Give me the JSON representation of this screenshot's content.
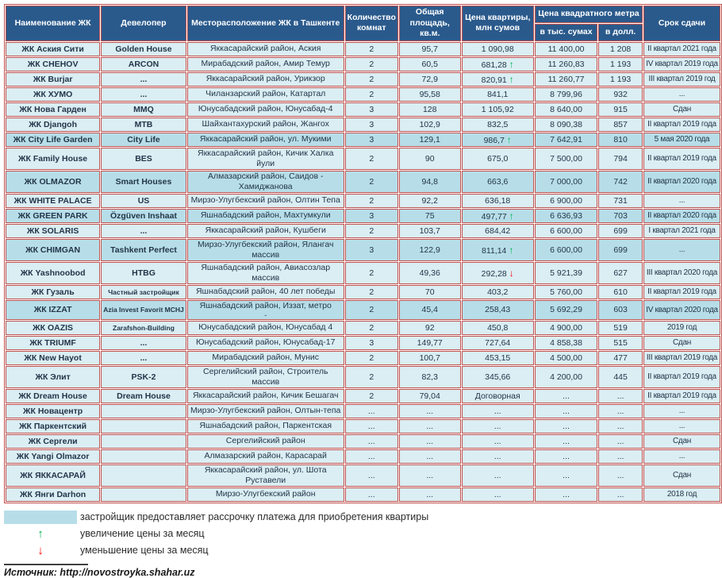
{
  "colors": {
    "header_bg": "#2A5A8C",
    "border": "#C0504D",
    "row_bg": "#DAEEF3",
    "highlight_bg": "#B7DEE8",
    "arrow_up": "#00B050",
    "arrow_down": "#FF0000"
  },
  "table": {
    "headers": {
      "name": "Наименование ЖК",
      "developer": "Девелопер",
      "location": "Месторасположение ЖК в Ташкенте",
      "rooms": "Количество комнат",
      "area": "Общая площадь, кв.м.",
      "price": "Цена квартиры, млн сумов",
      "sqm_group": "Цена квадратного метра",
      "sqm_sum": "в тыс. сумах",
      "sqm_usd": "в долл.",
      "deadline": "Срок сдачи"
    },
    "rows": [
      {
        "name": "ЖК Аския Сити",
        "dev": "Golden House",
        "loc": "Яккасарайский район, Аския",
        "rooms": "2",
        "area": "95,7",
        "price": "1 090,98",
        "arrow": "",
        "sqm": "11 400,00",
        "usd": "1 208",
        "due": "II квартал 2021 года",
        "hl": false
      },
      {
        "name": "ЖК CHEHOV",
        "dev": "ARCON",
        "loc": "Мирабадский район, Амир Темур",
        "rooms": "2",
        "area": "60,5",
        "price": "681,28",
        "arrow": "up",
        "sqm": "11 260,83",
        "usd": "1 193",
        "due": "IV квартал 2019 года",
        "hl": false
      },
      {
        "name": "ЖК Burjar",
        "dev": "...",
        "loc": "Яккасарайский район, Урикзор",
        "rooms": "2",
        "area": "72,9",
        "price": "820,91",
        "arrow": "up",
        "sqm": "11 260,77",
        "usd": "1 193",
        "due": "III квартал 2019 год",
        "hl": false
      },
      {
        "name": "ЖК ХУМО",
        "dev": "...",
        "loc": "Чиланзарский район, Катартал",
        "rooms": "2",
        "area": "95,58",
        "price": "841,1",
        "arrow": "",
        "sqm": "8 799,96",
        "usd": "932",
        "due": "...",
        "hl": false
      },
      {
        "name": "ЖК Нова Гарден",
        "dev": "MMQ",
        "loc": "Юнусабадский район, Юнусабад-4",
        "rooms": "3",
        "area": "128",
        "price": "1 105,92",
        "arrow": "",
        "sqm": "8 640,00",
        "usd": "915",
        "due": "Сдан",
        "hl": false
      },
      {
        "name": "ЖК Djangoh",
        "dev": "MTB",
        "loc": "Шайхантахурский район, Жангох",
        "rooms": "3",
        "area": "102,9",
        "price": "832,5",
        "arrow": "",
        "sqm": "8 090,38",
        "usd": "857",
        "due": "II квартал 2019 года",
        "hl": false
      },
      {
        "name": "ЖК City Life Garden",
        "dev": "City Life",
        "loc": "Яккасарайский район, ул. Мукими",
        "rooms": "3",
        "area": "129,1",
        "price": "986,7",
        "arrow": "up",
        "sqm": "7 642,91",
        "usd": "810",
        "due": "5 мая 2020 года",
        "hl": true
      },
      {
        "name": "ЖК Family House",
        "dev": "BES",
        "loc": "Яккасарайский район, Кичик Халка йули",
        "rooms": "2",
        "area": "90",
        "price": "675,0",
        "arrow": "",
        "sqm": "7 500,00",
        "usd": "794",
        "due": "II квартал 2019 года",
        "hl": false
      },
      {
        "name": "ЖК OLMAZOR",
        "dev": "Smart Houses",
        "loc": "Алмазарский район, Саидов - Хамиджанова",
        "rooms": "2",
        "area": "94,8",
        "price": "663,6",
        "arrow": "",
        "sqm": "7 000,00",
        "usd": "742",
        "due": "II квартал 2020 года",
        "hl": true
      },
      {
        "name": "ЖК WHITE PALACE",
        "dev": "US",
        "loc": "Мирзо-Улугбекский район, Олтин Тепа",
        "rooms": "2",
        "area": "92,2",
        "price": "636,18",
        "arrow": "",
        "sqm": "6 900,00",
        "usd": "731",
        "due": "...",
        "hl": false
      },
      {
        "name": "ЖК GREEN PARK",
        "dev": "Özgüven Inshaat",
        "loc": "Яшнабадский район, Махтумкули",
        "rooms": "3",
        "area": "75",
        "price": "497,77",
        "arrow": "up",
        "sqm": "6 636,93",
        "usd": "703",
        "due": "II квартал 2020 года",
        "hl": true
      },
      {
        "name": "ЖК SOLARIS",
        "dev": "...",
        "loc": "Яккасарайский район, Кушбеги",
        "rooms": "2",
        "area": "103,7",
        "price": "684,42",
        "arrow": "",
        "sqm": "6 600,00",
        "usd": "699",
        "due": "I квартал 2021 года",
        "hl": false
      },
      {
        "name": "ЖК CHIMGAN",
        "dev": "Tashkent Perfect",
        "loc": "Мирзо-Улугбекский район, Ялангач массив",
        "rooms": "3",
        "area": "122,9",
        "price": "811,14",
        "arrow": "up",
        "sqm": "6 600,00",
        "usd": "699",
        "due": "...",
        "hl": true
      },
      {
        "name": "ЖК Yashnoobod",
        "dev": "HTBG",
        "loc": "Яшнабадский район, Авиасозлар массив",
        "rooms": "2",
        "area": "49,36",
        "price": "292,28",
        "arrow": "down",
        "sqm": "5 921,39",
        "usd": "627",
        "due": "III квартал 2020 года",
        "hl": false
      },
      {
        "name": "ЖК Гузаль",
        "dev": "Частный застройщик",
        "loc": "Яшнабадский район, 40 лет победы",
        "rooms": "2",
        "area": "70",
        "price": "403,2",
        "arrow": "",
        "sqm": "5 760,00",
        "usd": "610",
        "due": "II квартал 2019 года",
        "hl": false
      },
      {
        "name": "ЖК IZZAT",
        "dev": "Azia Invest Favorit MCHJ",
        "loc": "Яшнабадский район, Иззат, метро",
        "loc2": "-",
        "rooms": "2",
        "area": "45,4",
        "price": "258,43",
        "arrow": "",
        "sqm": "5 692,29",
        "usd": "603",
        "due": "IV квартал 2020 года",
        "hl": true
      },
      {
        "name": "ЖК OAZIS",
        "dev": "Zarafshon-Building",
        "loc": "Юнусабадский район, Юнусабад 4",
        "rooms": "2",
        "area": "92",
        "price": "450,8",
        "arrow": "",
        "sqm": "4 900,00",
        "usd": "519",
        "due": "2019 год",
        "hl": false
      },
      {
        "name": "ЖК TRIUMF",
        "dev": "...",
        "loc": "Юнусабадский район, Юнусабад-17",
        "rooms": "3",
        "area": "149,77",
        "price": "727,64",
        "arrow": "",
        "sqm": "4 858,38",
        "usd": "515",
        "due": "Сдан",
        "hl": false
      },
      {
        "name": "ЖК New Hayot",
        "dev": "...",
        "loc": "Мирабадский район, Мунис",
        "rooms": "2",
        "area": "100,7",
        "price": "453,15",
        "arrow": "",
        "sqm": "4 500,00",
        "usd": "477",
        "due": "III квартал 2019 года",
        "hl": false
      },
      {
        "name": "ЖК Элит",
        "dev": "PSK-2",
        "loc": "Сергелийский район, Строитель массив",
        "rooms": "2",
        "area": "82,3",
        "price": "345,66",
        "arrow": "",
        "sqm": "4 200,00",
        "usd": "445",
        "due": "II квартал 2019 года",
        "hl": false
      },
      {
        "name": "ЖК Dream House",
        "dev": "Dream House",
        "loc": "Яккасарайский район, Кичик Бешагач",
        "rooms": "2",
        "area": "79,04",
        "price": "Договорная",
        "arrow": "",
        "sqm": "...",
        "usd": "...",
        "due": "II квартал 2019 года",
        "hl": false
      },
      {
        "name": "ЖК Новацентр",
        "dev": "",
        "loc": "Мирзо-Улугбекский район, Олтын-тепа",
        "rooms": "...",
        "area": "...",
        "price": "...",
        "arrow": "",
        "sqm": "...",
        "usd": "...",
        "due": "...",
        "hl": false
      },
      {
        "name": "ЖК Паркентский",
        "dev": "",
        "loc": "Яшнабадский район, Паркентская",
        "rooms": "...",
        "area": "...",
        "price": "...",
        "arrow": "",
        "sqm": "...",
        "usd": "...",
        "due": "...",
        "hl": false
      },
      {
        "name": "ЖК Сергели",
        "dev": "",
        "loc": "Сергелийский район",
        "rooms": "...",
        "area": "...",
        "price": "...",
        "arrow": "",
        "sqm": "...",
        "usd": "...",
        "due": "Сдан",
        "hl": false
      },
      {
        "name": "ЖК Yangi Olmazor",
        "dev": "",
        "loc": "Алмазарский район, Карасарай",
        "rooms": "...",
        "area": "...",
        "price": "...",
        "arrow": "",
        "sqm": "...",
        "usd": "...",
        "due": "...",
        "hl": false
      },
      {
        "name": "ЖК ЯККАСАРАЙ",
        "dev": "",
        "loc": "Яккасарайский район, ул. Шота Руставели",
        "rooms": "...",
        "area": "...",
        "price": "...",
        "arrow": "",
        "sqm": "...",
        "usd": "...",
        "due": "Сдан",
        "hl": false
      },
      {
        "name": "ЖК Янги Darhon",
        "dev": "",
        "loc": "Мирзо-Улугбекский район",
        "rooms": "...",
        "area": "...",
        "price": "...",
        "arrow": "",
        "sqm": "...",
        "usd": "...",
        "due": "2018 год",
        "hl": false
      }
    ]
  },
  "legend": {
    "up_icon": "↑",
    "down_icon": "↓",
    "swatch_label": "застройщик предоставляет рассрочку платежа для приобретения квартиры",
    "up_label": "увеличение цены за месяц",
    "down_label": "уменьшение цены за месяц"
  },
  "source": "Источник: http://novostroyka.shahar.uz"
}
